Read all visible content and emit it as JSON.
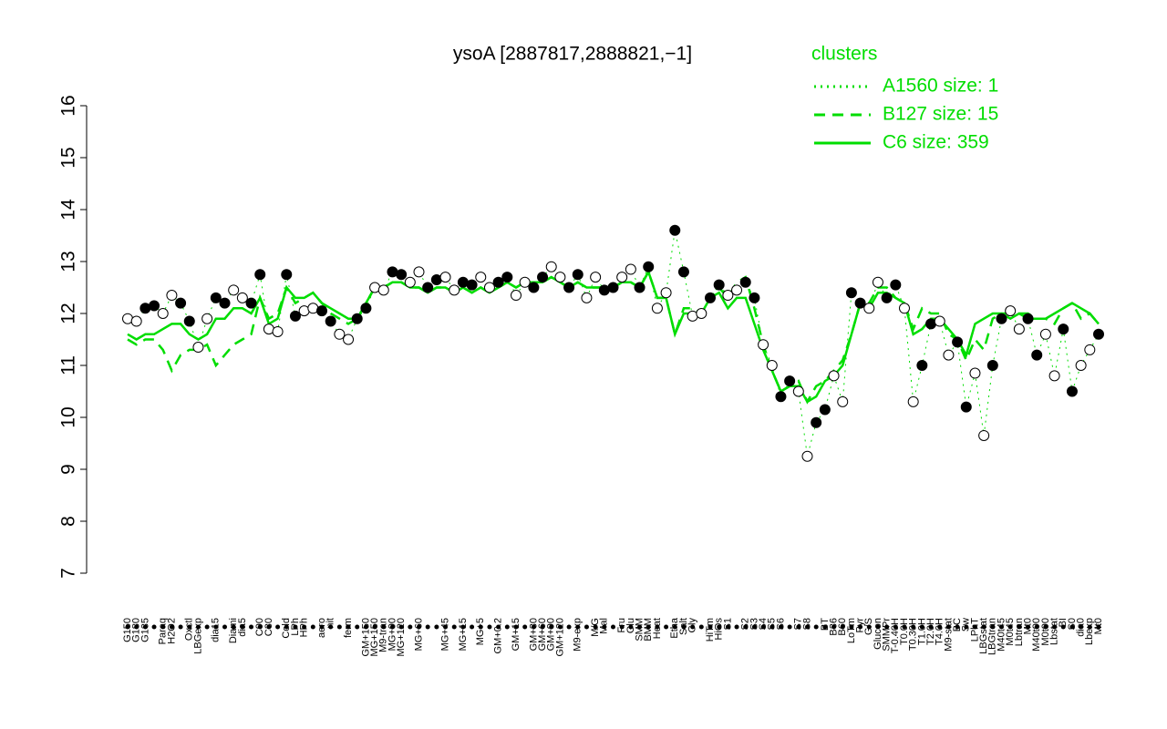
{
  "chart_data": {
    "type": "line",
    "title": "ysoA [2887817,2888821,−1]",
    "legend_title": "clusters",
    "legend_position": "top-right",
    "ylim": [
      7,
      16
    ],
    "yticks": [
      7,
      8,
      9,
      10,
      11,
      12,
      13,
      14,
      15,
      16
    ],
    "categories": [
      "G150",
      "G180",
      "G135",
      null,
      "Paraq",
      "H2O2",
      null,
      "Oxctl",
      "LBGexp",
      null,
      "dia15",
      null,
      "Diami",
      "dia5",
      null,
      "C90",
      "C30",
      null,
      "Cold",
      "LPh",
      "HPh",
      null,
      "aero",
      "nit",
      null,
      "ferm",
      null,
      "GM+150",
      "MG+150",
      "M9-tran",
      "MG+90",
      "MG+120",
      null,
      "MG+60",
      null,
      null,
      "MG+45",
      null,
      "MG+15",
      null,
      "MG+5",
      null,
      "GM+0.2",
      null,
      "GM+15",
      null,
      "GM+30",
      "GM+60",
      "GM+90",
      "GM+120",
      null,
      "M9-exp",
      null,
      "M/G",
      "Mal",
      null,
      "Fru",
      "Glu",
      "SMM",
      "BMM",
      "Heat",
      null,
      "Etha",
      "Salt",
      "Gly",
      null,
      "HiTm",
      "HiOs",
      "S1",
      null,
      "S2",
      "S3",
      "S4",
      "S5",
      "S6",
      null,
      "S7",
      "S8",
      null,
      "BT",
      "B36",
      "B60",
      "LoTm",
      "Pyr",
      "G/S",
      "Glucon",
      "SMMPr",
      "T-0.40H",
      "T0.0H",
      "T0.30H",
      "T1.0H",
      "T2.0H",
      "T4.0H",
      "M9-stat",
      "BC",
      "Sw",
      "LPhT",
      "LBGstat",
      "LBGtran",
      "M40t45",
      "M0t45",
      "Lbtran",
      "Mt0",
      "M40t90",
      "M0t90",
      "Lbstat",
      "BI",
      "S0",
      "dia0",
      "Lbexp",
      "Mt0"
    ],
    "series": [
      {
        "name": "A1560 size: 1",
        "color": "#00dd00",
        "dash": "dotted",
        "values": [
          11.9,
          11.85,
          12.1,
          12.15,
          12.0,
          12.35,
          12.2,
          11.85,
          11.35,
          11.9,
          12.3,
          12.2,
          12.45,
          12.3,
          12.2,
          12.75,
          11.7,
          11.65,
          12.75,
          11.95,
          12.05,
          12.1,
          12.05,
          11.85,
          11.6,
          11.5,
          11.9,
          12.1,
          12.5,
          12.45,
          12.8,
          12.75,
          12.6,
          12.8,
          12.5,
          12.65,
          12.7,
          12.45,
          12.6,
          12.55,
          12.7,
          12.5,
          12.6,
          12.7,
          12.35,
          12.6,
          12.5,
          12.7,
          12.9,
          12.7,
          12.5,
          12.75,
          12.3,
          12.7,
          12.45,
          12.5,
          12.7,
          12.85,
          12.5,
          12.9,
          12.1,
          12.4,
          13.6,
          12.8,
          11.95,
          12.0,
          12.3,
          12.55,
          12.35,
          12.45,
          12.6,
          12.3,
          11.4,
          11.0,
          10.4,
          10.7,
          10.5,
          9.25,
          9.9,
          10.15,
          10.8,
          10.3,
          12.4,
          12.2,
          12.1,
          12.6,
          12.3,
          12.55,
          12.1,
          10.3,
          11.0,
          11.8,
          11.85,
          11.2,
          11.45,
          10.2,
          10.85,
          9.65,
          11.0,
          11.9,
          12.05,
          11.7,
          11.9,
          11.2,
          11.6,
          10.8,
          11.7,
          10.5,
          11.0,
          11.3,
          11.6
        ]
      },
      {
        "name": "B127 size: 15",
        "color": "#00dd00",
        "dash": "dashed",
        "values": [
          11.5,
          11.4,
          11.5,
          11.5,
          11.3,
          10.9,
          11.2,
          11.3,
          11.3,
          11.4,
          11.0,
          11.2,
          11.4,
          11.5,
          11.6,
          12.3,
          11.9,
          12.0,
          12.5,
          12.2,
          12.3,
          12.4,
          12.2,
          12.0,
          11.9,
          11.8,
          11.9,
          12.2,
          12.5,
          12.5,
          12.6,
          12.6,
          12.5,
          12.5,
          12.4,
          12.5,
          12.5,
          12.4,
          12.5,
          12.4,
          12.5,
          12.4,
          12.5,
          12.6,
          12.5,
          12.6,
          12.6,
          12.6,
          12.7,
          12.6,
          12.5,
          12.6,
          12.5,
          12.5,
          12.5,
          12.5,
          12.6,
          12.6,
          12.5,
          12.8,
          12.3,
          12.3,
          11.6,
          12.1,
          12.1,
          12.0,
          12.3,
          12.5,
          12.3,
          12.6,
          12.7,
          12.1,
          11.4,
          10.9,
          10.5,
          10.6,
          10.7,
          10.3,
          10.6,
          10.7,
          10.9,
          11.1,
          11.6,
          12.2,
          12.2,
          12.5,
          12.5,
          12.3,
          12.2,
          11.7,
          12.1,
          12.0,
          12.0,
          11.6,
          11.5,
          11.1,
          11.5,
          11.3,
          11.9,
          12.0,
          12.0,
          12.0,
          12.0,
          11.9,
          11.9,
          11.8,
          12.1,
          12.2,
          11.9,
          12.0,
          11.8
        ]
      },
      {
        "name": "C6 size: 359",
        "color": "#00dd00",
        "dash": "solid",
        "values": [
          11.6,
          11.5,
          11.6,
          11.6,
          11.7,
          11.8,
          11.8,
          11.6,
          11.5,
          11.6,
          11.9,
          11.9,
          12.1,
          12.1,
          12.0,
          12.3,
          11.8,
          11.9,
          12.5,
          12.3,
          12.3,
          12.4,
          12.2,
          12.1,
          12.0,
          11.9,
          11.9,
          12.2,
          12.5,
          12.5,
          12.6,
          12.6,
          12.5,
          12.5,
          12.4,
          12.5,
          12.5,
          12.4,
          12.5,
          12.4,
          12.5,
          12.4,
          12.5,
          12.6,
          12.5,
          12.6,
          12.6,
          12.6,
          12.7,
          12.6,
          12.5,
          12.6,
          12.5,
          12.5,
          12.5,
          12.5,
          12.6,
          12.6,
          12.5,
          12.8,
          12.3,
          12.3,
          11.6,
          12.0,
          12.0,
          12.0,
          12.3,
          12.4,
          12.1,
          12.3,
          12.3,
          11.8,
          11.3,
          10.9,
          10.5,
          10.6,
          10.6,
          10.3,
          10.4,
          10.7,
          10.8,
          11.0,
          11.6,
          12.2,
          12.1,
          12.4,
          12.4,
          12.3,
          12.2,
          11.6,
          11.7,
          11.9,
          11.9,
          11.7,
          11.5,
          11.2,
          11.8,
          11.9,
          12.0,
          12.0,
          11.9,
          12.0,
          11.9,
          11.9,
          11.9,
          12.0,
          12.1,
          12.2,
          12.1,
          12.0,
          11.8
        ]
      }
    ]
  }
}
